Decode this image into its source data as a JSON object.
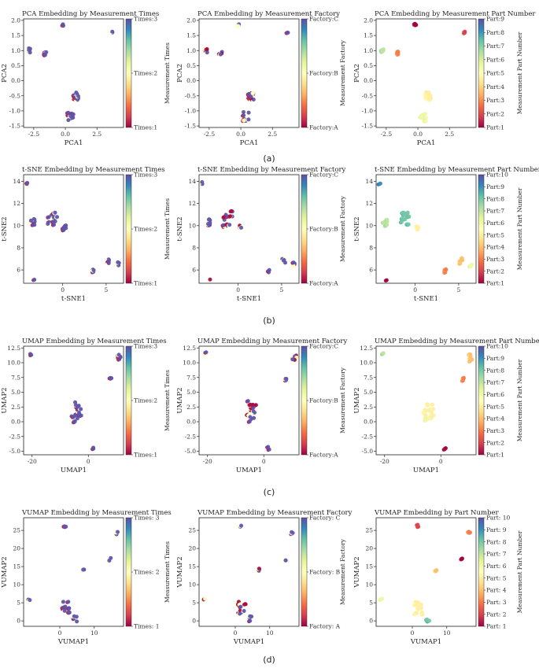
{
  "figure": {
    "rows": [
      {
        "caption": "(a)",
        "xlabel": "PCA1",
        "ylabel": "PCA2",
        "xlim": [
          -3.3,
          4.6
        ],
        "ylim": [
          -1.55,
          2.05
        ],
        "xticks": [
          -2.5,
          0.0,
          2.5
        ],
        "xticklabels": [
          "-2.5",
          "0.0",
          "2.5"
        ],
        "yticks": [
          -1.5,
          -1.0,
          -0.5,
          0.0,
          0.5,
          1.0,
          1.5,
          2.0
        ],
        "yticklabels": [
          "-1.5",
          "-1.0",
          "-0.5",
          "0.0",
          "0.5",
          "1.0",
          "1.5",
          "2.0"
        ],
        "clusters": [
          {
            "x": 0.8,
            "y": -0.5,
            "spread": 0.9,
            "n": 22,
            "part": 5
          },
          {
            "x": -2.8,
            "y": 1.0,
            "spread": 0.5,
            "n": 6,
            "part": 7
          },
          {
            "x": -1.6,
            "y": 0.9,
            "spread": 0.4,
            "n": 5,
            "part": 3
          },
          {
            "x": -0.2,
            "y": 1.85,
            "spread": 0.25,
            "n": 3,
            "part": 1
          },
          {
            "x": 3.7,
            "y": 1.6,
            "spread": 0.2,
            "n": 2,
            "part": 2
          },
          {
            "x": 0.4,
            "y": -1.2,
            "spread": 1.0,
            "n": 10,
            "part": 6
          }
        ],
        "panels": [
          {
            "title": "PCA Embedding by Measurement Times",
            "cbar": "times"
          },
          {
            "title": "PCA Embedding by Measurement Factory",
            "cbar": "factory"
          },
          {
            "title": "PCA Embedding by Measurement Part Number",
            "cbar": "part_a"
          }
        ]
      },
      {
        "caption": "(b)",
        "xlabel": "t-SNE1",
        "ylabel": "t-SNE2",
        "xlim": [
          -4.5,
          7.0
        ],
        "ylim": [
          4.8,
          14.6
        ],
        "xticks": [
          0,
          5
        ],
        "xticklabels": [
          "0",
          "5"
        ],
        "yticks": [
          6,
          8,
          10,
          12,
          14
        ],
        "yticklabels": [
          "6",
          "8",
          "10",
          "12",
          "14"
        ],
        "clusters": [
          {
            "x": -4.1,
            "y": 13.8,
            "spread": 0.3,
            "n": 2,
            "part": 9
          },
          {
            "x": -3.5,
            "y": 10.3,
            "spread": 0.8,
            "n": 8,
            "part": 7
          },
          {
            "x": -1.2,
            "y": 10.6,
            "spread": 1.6,
            "n": 14,
            "part": 8
          },
          {
            "x": 0.2,
            "y": 9.8,
            "spread": 0.5,
            "n": 5,
            "part": 5
          },
          {
            "x": 3.5,
            "y": 5.9,
            "spread": 0.3,
            "n": 4,
            "part": 3
          },
          {
            "x": 5.2,
            "y": 6.8,
            "spread": 0.6,
            "n": 5,
            "part": 4
          },
          {
            "x": 6.4,
            "y": 6.5,
            "spread": 0.4,
            "n": 4,
            "part": 6
          },
          {
            "x": -3.3,
            "y": 5.1,
            "spread": 0.1,
            "n": 1,
            "part": 1
          }
        ],
        "panels": [
          {
            "title": "t-SNE Embedding by Measurement Times",
            "cbar": "times"
          },
          {
            "title": "t-SNE Embedding by Measurement Factory",
            "cbar": "factory"
          },
          {
            "title": "t-SNE Embedding by Measurement Part Number",
            "cbar": "part_b"
          }
        ]
      },
      {
        "caption": "(c)",
        "xlabel": "UMAP1",
        "ylabel": "UMAP2",
        "xlim": [
          -23.0,
          12.5
        ],
        "ylim": [
          -5.6,
          12.8
        ],
        "xticks": [
          -20,
          0
        ],
        "xticklabels": [
          "-20",
          "0"
        ],
        "yticks": [
          -5.0,
          -2.5,
          0.0,
          2.5,
          5.0,
          7.5,
          10.0,
          12.5
        ],
        "yticklabels": [
          "-5.0",
          "-2.5",
          "0.0",
          "2.5",
          "5.0",
          "7.5",
          "10.0",
          "12.5"
        ],
        "clusters": [
          {
            "x": -20.5,
            "y": 11.5,
            "spread": 0.3,
            "n": 2,
            "part": 7
          },
          {
            "x": -4.5,
            "y": 2.0,
            "spread": 1.8,
            "n": 16,
            "part": 5
          },
          {
            "x": -5.0,
            "y": 0.3,
            "spread": 0.6,
            "n": 3,
            "part": 6
          },
          {
            "x": 1.5,
            "y": -4.5,
            "spread": 0.3,
            "n": 2,
            "part": 1
          },
          {
            "x": 7.8,
            "y": 7.2,
            "spread": 0.4,
            "n": 3,
            "part": 3
          },
          {
            "x": 10.8,
            "y": 10.8,
            "spread": 0.7,
            "n": 6,
            "part": 4
          }
        ],
        "panels": [
          {
            "title": "UMAP Embedding by Measurement Times",
            "cbar": "times"
          },
          {
            "title": "UMAP Embedding by Measurement Factory",
            "cbar": "factory"
          },
          {
            "title": "UMAP Embedding by Measurement Part Number",
            "cbar": "part_b"
          }
        ]
      },
      {
        "caption": "(d)",
        "xlabel": "VUMAP1",
        "ylabel": "VUMAP2",
        "xlim": [
          -10.5,
          18.5
        ],
        "ylim": [
          -1.5,
          28.5
        ],
        "xticks": [
          0,
          10
        ],
        "xticklabels": [
          "0",
          "10"
        ],
        "yticks": [
          0,
          5,
          10,
          15,
          20,
          25
        ],
        "yticklabels": [
          "0",
          "5",
          "10",
          "15",
          "20",
          "25"
        ],
        "clusters": [
          {
            "x": -9.0,
            "y": 5.8,
            "spread": 0.3,
            "n": 2,
            "part": 6
          },
          {
            "x": 1.5,
            "y": 26.3,
            "spread": 0.3,
            "n": 2,
            "part": 2
          },
          {
            "x": 1.8,
            "y": 3.5,
            "spread": 1.4,
            "n": 12,
            "part": 5
          },
          {
            "x": 4.5,
            "y": 0.5,
            "spread": 0.6,
            "n": 4,
            "part": 8
          },
          {
            "x": 6.8,
            "y": 14.0,
            "spread": 0.3,
            "n": 3,
            "part": 4
          },
          {
            "x": 14.5,
            "y": 17.0,
            "spread": 0.3,
            "n": 2,
            "part": 1
          },
          {
            "x": 16.5,
            "y": 24.2,
            "spread": 0.3,
            "n": 3,
            "part": 3
          }
        ],
        "panels": [
          {
            "title": "VUMAP Embedding by Measurement Times",
            "cbar": "times_d"
          },
          {
            "title": "VUMAP Embedding by Measurement Factory",
            "cbar": "factory_d"
          },
          {
            "title": "VUMAP Embedding by Part Number",
            "cbar": "part_d"
          }
        ]
      }
    ],
    "colorbars": {
      "times": {
        "label": "Measurement Times",
        "ticks": [
          "Times:1",
          "Times:2",
          "Times:3"
        ]
      },
      "factory": {
        "label": "Measurement Factory",
        "ticks": [
          "Factory:A",
          "Factory:B",
          "Factory:C"
        ]
      },
      "part_b": {
        "label": "Measurement Part Number",
        "ticks": [
          "Part:1",
          "Part:2",
          "Part:3",
          "Part:4",
          "Part:5",
          "Part:6",
          "Part:7",
          "Part:8",
          "Part:9",
          "Part:10"
        ]
      },
      "part_a": {
        "label": "Measurement Part Number",
        "ticks": [
          "Part:1",
          "Part:2",
          "Part:3",
          "Part:4",
          "Part:5",
          "Part:6",
          "Part:7",
          "Part:8",
          "Part:9"
        ]
      },
      "times_d": {
        "label": "Measurement Times",
        "ticks": [
          "Times: 1",
          "Times: 2",
          "Times: 3"
        ]
      },
      "factory_d": {
        "label": "Measurement Factory",
        "ticks": [
          "Factory: A",
          "Factory: B",
          "Factory: C"
        ]
      },
      "part_d": {
        "label": "Measurement Part Number",
        "ticks": [
          "Part: 1",
          "Part: 2",
          "Part: 3",
          "Part: 4",
          "Part: 5",
          "Part: 6",
          "Part: 7",
          "Part: 8",
          "Part: 9",
          "Part: 10"
        ]
      }
    },
    "colormap": [
      "#9e0142",
      "#d53e4f",
      "#f46d43",
      "#fdae61",
      "#fee08b",
      "#ffffbf",
      "#e6f598",
      "#abdda4",
      "#66c2a5",
      "#3288bd",
      "#5e4fa2"
    ],
    "overlay_color": "#5e55b0"
  },
  "chart_data": [
    {
      "type": "scatter",
      "title": "PCA Embedding by Measurement Times",
      "xlabel": "PCA1",
      "ylabel": "PCA2",
      "xlim": [
        -3.3,
        4.6
      ],
      "ylim": [
        -1.55,
        2.05
      ],
      "colorbar": [
        "Times: 1",
        "Times: 2",
        "Times: 3"
      ]
    },
    {
      "type": "scatter",
      "title": "PCA Embedding by Measurement Factory",
      "xlabel": "PCA1",
      "ylabel": "PCA2",
      "colorbar": [
        "Factory: A",
        "Factory: B",
        "Factory: C"
      ]
    },
    {
      "type": "scatter",
      "title": "PCA Embedding by Measurement Part Number",
      "xlabel": "PCA1",
      "ylabel": "PCA2",
      "colorbar": [
        "Part:1",
        "Part:9"
      ]
    },
    {
      "type": "scatter",
      "title": "t-SNE Embedding by Measurement Times",
      "xlabel": "t-SNE1",
      "ylabel": "t-SNE2",
      "colorbar": [
        "Times:1",
        "Times:3"
      ]
    },
    {
      "type": "scatter",
      "title": "UMAP Embedding by Measurement Times",
      "xlabel": "UMAP1",
      "ylabel": "UMAP2",
      "colorbar": [
        "Times:1",
        "Times:3"
      ]
    },
    {
      "type": "scatter",
      "title": "VUMAP Embedding by Measurement Times",
      "xlabel": "VUMAP1",
      "ylabel": "VUMAP2",
      "colorbar": [
        "Times: 1",
        "Times: 3"
      ]
    }
  ]
}
